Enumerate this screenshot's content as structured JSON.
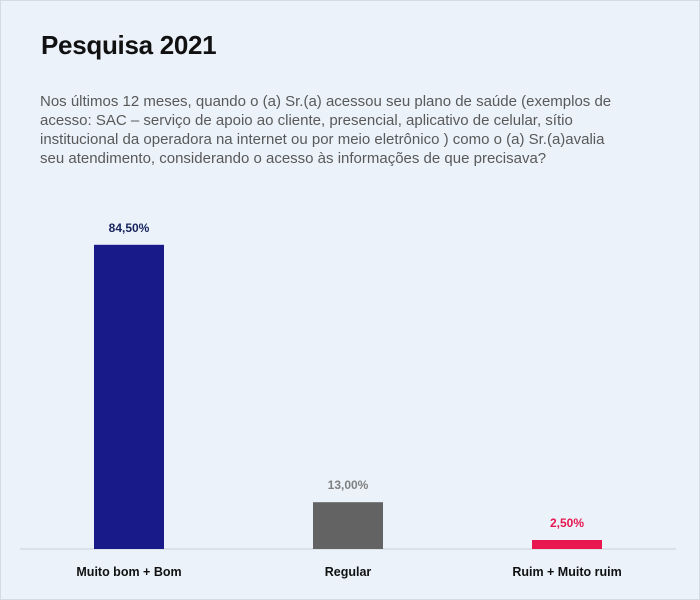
{
  "title": "Pesquisa 2021",
  "question": "Nos últimos 12 meses, quando o (a) Sr.(a) acessou seu plano de saúde (exemplos de acesso: SAC – serviço de apoio ao cliente, presencial, aplicativo de celular, sítio institucional da operadora na internet ou por meio eletrônico ) como o (a) Sr.(a)avalia seu atendimento, considerando o acesso às informações de que precisava?",
  "chart_data": {
    "type": "bar",
    "title": "Pesquisa 2021",
    "categories": [
      "Muito bom + Bom",
      "Regular",
      "Ruim + Muito ruim"
    ],
    "values": [
      84.5,
      13.0,
      2.5
    ],
    "value_labels": [
      "84,50%",
      "13,00%",
      "2,50%"
    ],
    "colors": [
      "#191a8a",
      "#636363",
      "#e8174f"
    ],
    "label_colors": [
      "#16235c",
      "#808080",
      "#e8174f"
    ],
    "ylim": [
      0,
      100
    ],
    "grid": false,
    "legend": "none"
  }
}
